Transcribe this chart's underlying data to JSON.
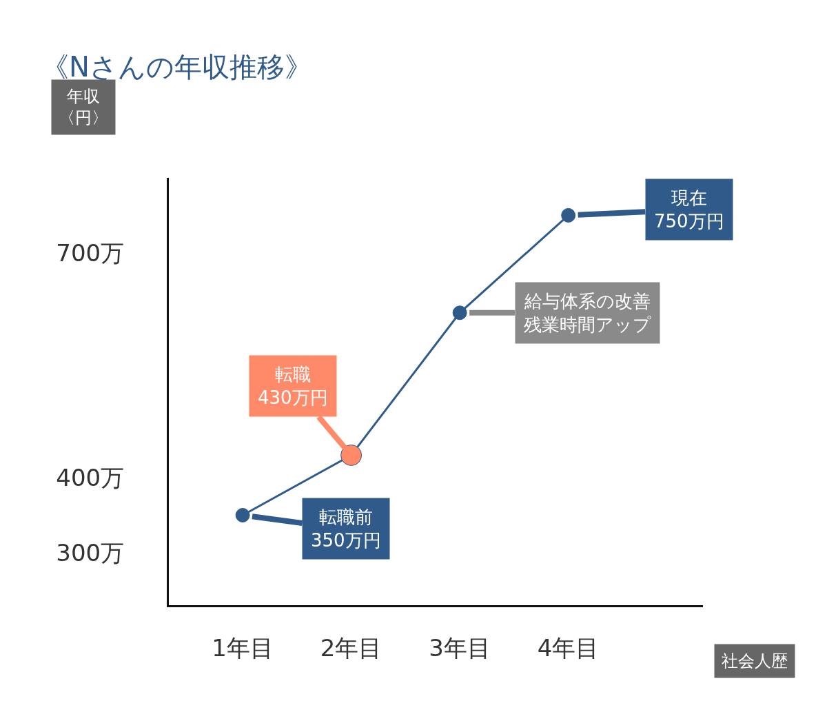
{
  "chart_data": {
    "type": "line",
    "title": "《Nさんの年収推移》",
    "ylabel": "年収〈円〉",
    "xlabel": "社会人歴",
    "categories": [
      "1年目",
      "2年目",
      "3年目",
      "4年目"
    ],
    "series": [
      {
        "values": [
          350,
          430,
          620,
          750
        ],
        "color": "#2f5a8a",
        "colors": [
          "#2f5a8a",
          "#ff8a6a",
          "#2f5a8a",
          "#2f5a8a"
        ]
      }
    ],
    "ylim": [
      230,
      800
    ],
    "yticks": [
      {
        "value": 300,
        "label": "300万"
      },
      {
        "value": 400,
        "label": "400万"
      },
      {
        "value": 700,
        "label": "700万"
      }
    ],
    "annotations": [
      {
        "text": "転職前\n350万円",
        "x": "1年目",
        "y": 350
      },
      {
        "text": "転職\n430万円",
        "x": "2年目",
        "y": 430
      },
      {
        "text": "給与体系の改善残業時間アップ",
        "x": "3年目",
        "y": 620
      },
      {
        "text": "現在\n750万円",
        "x": "4年目",
        "y": 750
      }
    ],
    "marker": "circle",
    "line_style": "solid",
    "grid": false
  }
}
